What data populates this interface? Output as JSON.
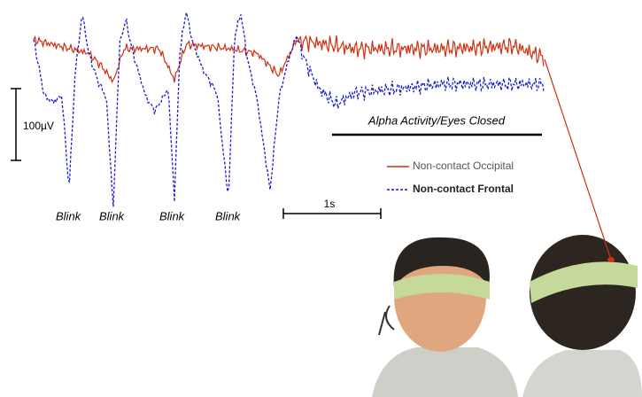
{
  "scale_bar": {
    "label": "100µV"
  },
  "annotations": {
    "alpha": "Alpha Activity/Eyes Closed",
    "blinks": [
      "Blink",
      "Blink",
      "Blink",
      "Blink"
    ],
    "time_scale": "1s"
  },
  "legend": [
    {
      "name": "Non-contact Occipital",
      "color": "#d03010"
    },
    {
      "name": "Non-contact Frontal",
      "color": "#1a1acc"
    }
  ]
}
